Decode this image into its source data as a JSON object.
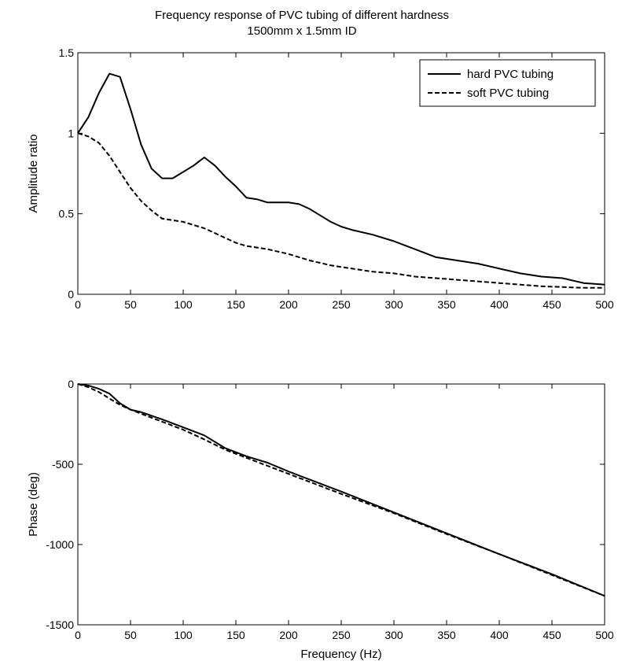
{
  "figure": {
    "title_line1": "Frequency response of PVC tubing of different hardness",
    "title_line2": "1500mm x 1.5mm ID"
  },
  "chart_data": [
    {
      "type": "line",
      "title": "Frequency response of PVC tubing of different hardness 1500mm x 1.5mm ID",
      "xlabel": "",
      "ylabel": "Amplitude ratio",
      "xlim": [
        0,
        500
      ],
      "ylim": [
        0,
        1.5
      ],
      "xticks": [
        0,
        50,
        100,
        150,
        200,
        250,
        300,
        350,
        400,
        450,
        500
      ],
      "yticks": [
        0,
        0.5,
        1,
        1.5
      ],
      "ytick_labels": [
        "0",
        "0.5",
        "1",
        "1.5"
      ],
      "grid": false,
      "legend_position": "top-right",
      "series": [
        {
          "name": "hard PVC tubing",
          "style": "solid",
          "x": [
            0,
            10,
            20,
            30,
            40,
            50,
            60,
            70,
            80,
            90,
            100,
            110,
            120,
            130,
            140,
            150,
            160,
            170,
            180,
            190,
            200,
            210,
            220,
            230,
            240,
            250,
            260,
            280,
            300,
            320,
            340,
            360,
            380,
            400,
            420,
            440,
            460,
            480,
            500
          ],
          "y": [
            1.0,
            1.1,
            1.25,
            1.37,
            1.35,
            1.15,
            0.93,
            0.78,
            0.72,
            0.72,
            0.76,
            0.8,
            0.85,
            0.8,
            0.73,
            0.67,
            0.6,
            0.59,
            0.57,
            0.57,
            0.57,
            0.56,
            0.53,
            0.49,
            0.45,
            0.42,
            0.4,
            0.37,
            0.33,
            0.28,
            0.23,
            0.21,
            0.19,
            0.16,
            0.13,
            0.11,
            0.1,
            0.07,
            0.06
          ]
        },
        {
          "name": "soft PVC tubing",
          "style": "dashed",
          "x": [
            0,
            10,
            20,
            30,
            40,
            50,
            60,
            70,
            80,
            90,
            100,
            110,
            120,
            130,
            140,
            150,
            160,
            170,
            180,
            200,
            220,
            240,
            260,
            280,
            300,
            320,
            340,
            360,
            380,
            400,
            420,
            440,
            460,
            480,
            500
          ],
          "y": [
            1.0,
            0.98,
            0.94,
            0.86,
            0.76,
            0.66,
            0.58,
            0.52,
            0.47,
            0.46,
            0.45,
            0.43,
            0.41,
            0.38,
            0.35,
            0.32,
            0.3,
            0.29,
            0.28,
            0.25,
            0.21,
            0.18,
            0.16,
            0.14,
            0.13,
            0.11,
            0.1,
            0.09,
            0.08,
            0.07,
            0.06,
            0.05,
            0.045,
            0.04,
            0.04
          ]
        }
      ]
    },
    {
      "type": "line",
      "title": "",
      "xlabel": "Frequency (Hz)",
      "ylabel": "Phase (deg)",
      "xlim": [
        0,
        500
      ],
      "ylim": [
        -1500,
        0
      ],
      "xticks": [
        0,
        50,
        100,
        150,
        200,
        250,
        300,
        350,
        400,
        450,
        500
      ],
      "yticks": [
        -1500,
        -1000,
        -500,
        0
      ],
      "ytick_labels": [
        "-1500",
        "-1000",
        "-500",
        "0"
      ],
      "grid": false,
      "series": [
        {
          "style": "solid",
          "x": [
            0,
            10,
            20,
            30,
            40,
            50,
            60,
            80,
            100,
            120,
            140,
            160,
            180,
            200,
            250,
            300,
            350,
            400,
            450,
            500
          ],
          "y": [
            0,
            -10,
            -30,
            -60,
            -120,
            -160,
            -175,
            -220,
            -270,
            -320,
            -400,
            -450,
            -490,
            -545,
            -670,
            -800,
            -930,
            -1060,
            -1185,
            -1320
          ]
        },
        {
          "style": "dashed",
          "x": [
            0,
            10,
            20,
            30,
            40,
            50,
            60,
            80,
            100,
            120,
            140,
            160,
            180,
            200,
            250,
            300,
            350,
            400,
            450,
            500
          ],
          "y": [
            0,
            -20,
            -50,
            -90,
            -130,
            -160,
            -185,
            -235,
            -285,
            -345,
            -410,
            -460,
            -510,
            -560,
            -685,
            -805,
            -935,
            -1060,
            -1190,
            -1320
          ]
        }
      ]
    }
  ]
}
